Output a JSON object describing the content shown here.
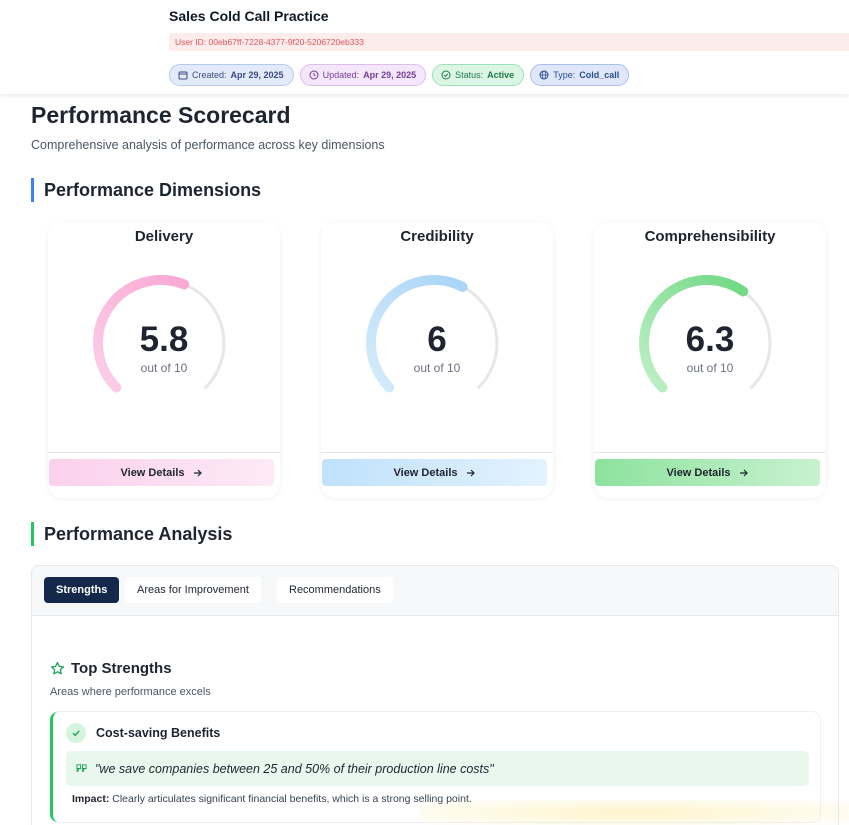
{
  "header": {
    "title": "Sales Cold Call Practice",
    "user_id": "User ID: 00eb67ff-7228-4377-9f20-5206720eb333",
    "badges": {
      "created_label": "Created:",
      "created_value": "Apr 29, 2025",
      "updated_label": "Updated:",
      "updated_value": "Apr 29, 2025",
      "status_label": "Status:",
      "status_value": "Active",
      "type_label": "Type:",
      "type_value": "Cold_call"
    }
  },
  "page": {
    "title": "Performance Scorecard",
    "subtitle": "Comprehensive analysis of performance across key dimensions"
  },
  "dimensions": {
    "heading": "Performance Dimensions",
    "cards": [
      {
        "name": "Delivery",
        "score": "5.8",
        "score_value": 5.8,
        "out_of": "out of 10",
        "button": "View Details",
        "color_start": "#fbcfe8",
        "color_end": "#f9a8d4"
      },
      {
        "name": "Credibility",
        "score": "6",
        "score_value": 6,
        "out_of": "out of 10",
        "button": "View Details",
        "color_start": "#d6ecfb",
        "color_end": "#a8d4f7"
      },
      {
        "name": "Comprehensibility",
        "score": "6.3",
        "score_value": 6.3,
        "out_of": "out of 10",
        "button": "View Details",
        "color_start": "#bff0c8",
        "color_end": "#6fd983"
      }
    ]
  },
  "analysis": {
    "heading": "Performance Analysis",
    "tabs": [
      "Strengths",
      "Areas for Improvement",
      "Recommendations"
    ],
    "active_tab": "Strengths",
    "strengths": {
      "title": "Top Strengths",
      "subtitle": "Areas where performance excels",
      "items": [
        {
          "title": "Cost-saving Benefits",
          "quote": "\"we save companies between 25 and 50% of their production line costs\"",
          "impact_label": "Impact:",
          "impact_text": "Clearly articulates significant financial benefits, which is a strong selling point."
        }
      ]
    }
  },
  "icons": {
    "created": "calendar-icon",
    "updated": "clock-icon",
    "status": "check-circle-icon",
    "type": "globe-icon",
    "view_details": "arrow-right-icon",
    "strengths": "star-icon",
    "item": "check-icon",
    "quote": "quote-icon"
  },
  "colors": {
    "section_accent_dims": "#3b82f6",
    "section_accent_analysis": "#22c55e",
    "active_tab": "#14284b"
  }
}
